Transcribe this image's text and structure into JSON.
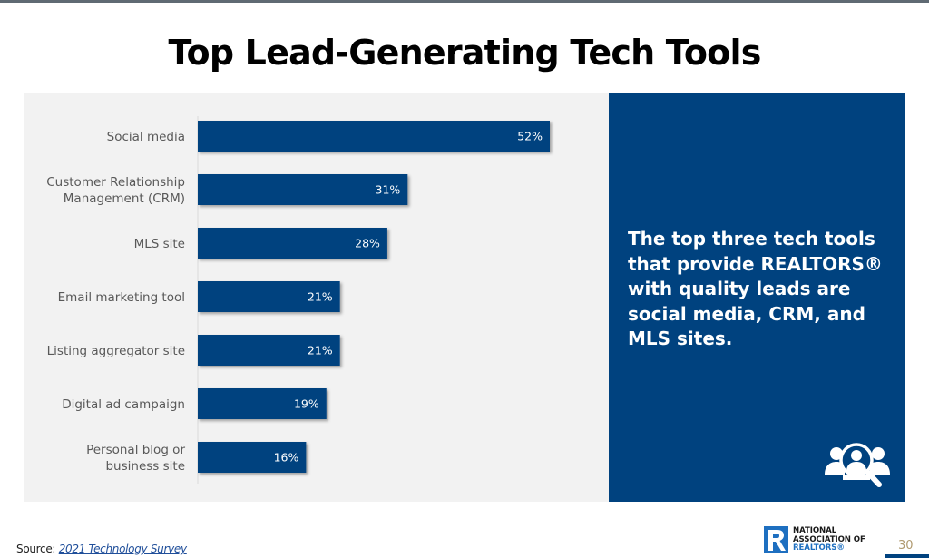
{
  "slide": {
    "title": "Top Lead-Generating Tech Tools",
    "page_number": "30"
  },
  "insight": {
    "text": "The top three tech tools that provide REALTORS® with quality leads are social media, CRM, and MLS sites.",
    "icon": "people-search-icon"
  },
  "source": {
    "prefix": "Source: ",
    "link_text": "2021 Technology Survey"
  },
  "logo": {
    "line1": "NATIONAL",
    "line2": "ASSOCIATION OF",
    "line3": "REALTORS®",
    "mark": "R"
  },
  "colors": {
    "bar": "#00427f",
    "panel_bg": "#f2f2f2",
    "insight_bg": "#00427f",
    "label_text": "#595959"
  },
  "chart_data": {
    "type": "bar",
    "orientation": "horizontal",
    "title": "Top Lead-Generating Tech Tools",
    "xlabel": "",
    "ylabel": "",
    "categories": [
      [
        "Social media"
      ],
      [
        "Customer Relationship",
        "Management (CRM)"
      ],
      [
        "MLS site"
      ],
      [
        "Email marketing tool"
      ],
      [
        "Listing aggregator site"
      ],
      [
        "Digital ad campaign"
      ],
      [
        "Personal blog or",
        "business site"
      ]
    ],
    "values": [
      52,
      31,
      28,
      21,
      21,
      19,
      16
    ],
    "value_labels": [
      "52%",
      "31%",
      "28%",
      "21%",
      "21%",
      "19%",
      "16%"
    ],
    "unit": "%",
    "xlim": [
      0,
      56
    ],
    "grid": false,
    "legend": "none"
  }
}
